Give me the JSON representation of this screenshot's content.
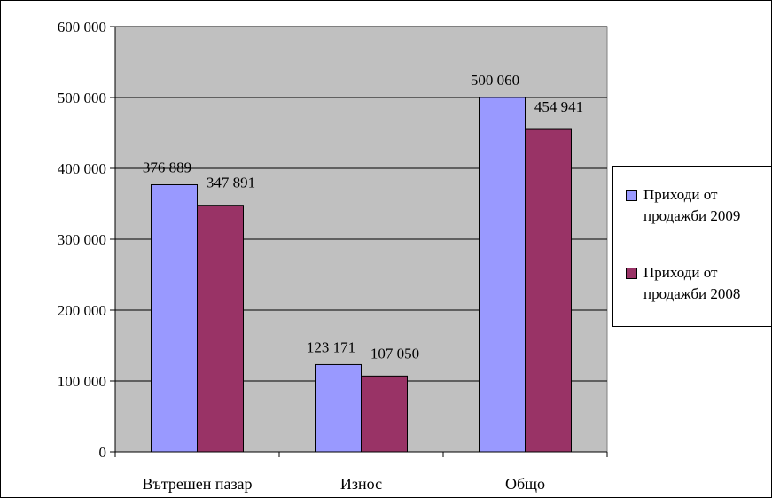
{
  "chart_data": {
    "type": "bar",
    "categories": [
      "Вътрешен пазар",
      "Износ",
      "Общо"
    ],
    "series": [
      {
        "name": "Приходи от продажби 2009",
        "values": [
          376889,
          123171,
          500060
        ],
        "value_labels": [
          "376 889",
          "123 171",
          "500 060"
        ],
        "color": "#9999ff"
      },
      {
        "name": "Приходи от продажби 2008",
        "values": [
          347891,
          107050,
          454941
        ],
        "value_labels": [
          "347 891",
          "107 050",
          "454 941"
        ],
        "color": "#993366"
      }
    ],
    "ylim": [
      0,
      600000
    ],
    "yticks": [
      0,
      100000,
      200000,
      300000,
      400000,
      500000,
      600000
    ],
    "ytick_labels": [
      "0",
      "100 000",
      "200 000",
      "300 000",
      "400 000",
      "500 000",
      "600 000"
    ],
    "grid": true,
    "plot_background": "#c0c0c0",
    "legend": "right"
  }
}
